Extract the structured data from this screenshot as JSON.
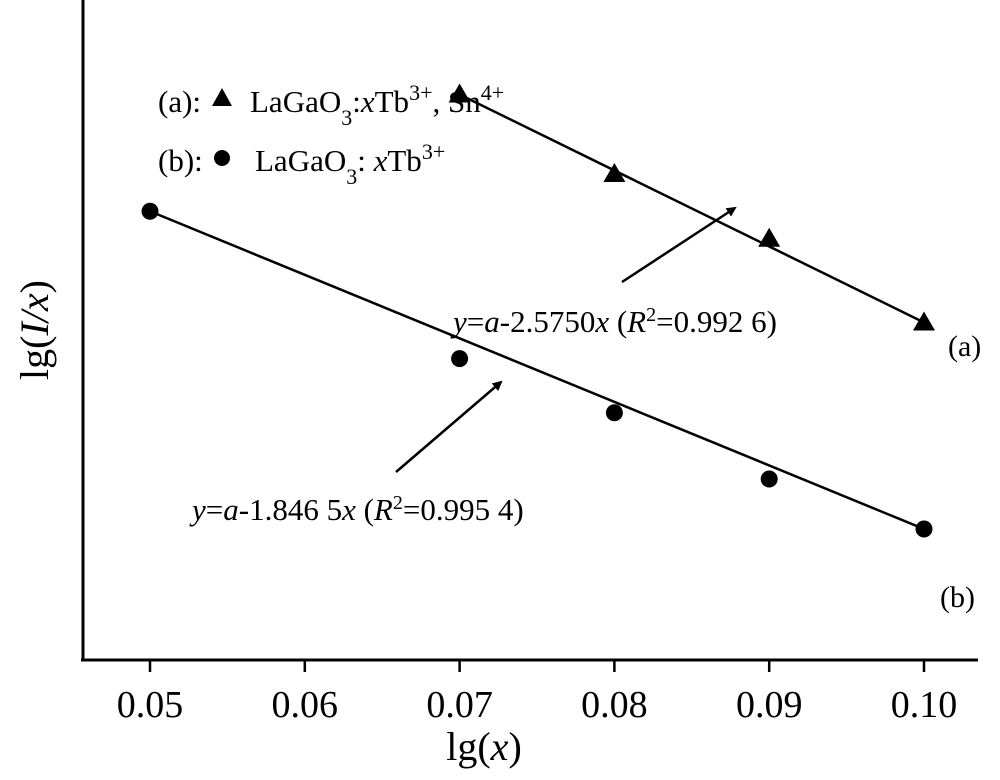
{
  "chart_data": {
    "type": "scatter",
    "xlabel_prefix": "lg(",
    "xlabel_var": "x",
    "xlabel_suffix": ")",
    "ylabel_prefix": "lg(",
    "ylabel_var": "I/x",
    "ylabel_suffix": ")",
    "x_ticks": [
      "0.05",
      "0.06",
      "0.07",
      "0.08",
      "0.09",
      "0.10"
    ],
    "xlim": [
      0.0455,
      0.1035
    ],
    "ylim": [
      0.0,
      1.0
    ],
    "y_ticks_shown": false,
    "grid": false,
    "legend_position": "top-left",
    "series": [
      {
        "name_prefix": "(a):",
        "legend_text_html": "LaGaO<tspan baseline-shift=\"sub\" font-size=\"22\">3</tspan>:<tspan font-style=\"italic\">x</tspan>Tb<tspan baseline-shift=\"super\" font-size=\"22\">3+</tspan>, Sn<tspan baseline-shift=\"super\" font-size=\"22\">4+</tspan>",
        "marker": "triangle",
        "end_label": "(a)",
        "x": [
          0.07,
          0.08,
          0.09,
          0.1
        ],
        "y": [
          0.952,
          0.796,
          0.669,
          0.505
        ],
        "fit": {
          "x0": 0.07,
          "y0": 0.952,
          "x1": 0.1,
          "y1": 0.505
        },
        "equation_html": "<tspan font-style=\"italic\">y</tspan>=<tspan font-style=\"italic\">a</tspan>-2.5750<tspan font-style=\"italic\">x</tspan> (<tspan font-style=\"italic\">R</tspan><tspan baseline-shift=\"super\" font-size=\"20\">2</tspan>=0.992 6)"
      },
      {
        "name_prefix": "(b):",
        "legend_text_html": "LaGaO<tspan baseline-shift=\"sub\" font-size=\"22\">3</tspan>: <tspan font-style=\"italic\">x</tspan>Tb<tspan baseline-shift=\"super\" font-size=\"22\">3+</tspan>",
        "marker": "circle",
        "end_label": "(b)",
        "x": [
          0.05,
          0.07,
          0.08,
          0.09,
          0.1
        ],
        "y": [
          0.723,
          0.434,
          0.328,
          0.198,
          0.1
        ],
        "fit": {
          "x0": 0.05,
          "y0": 0.723,
          "x1": 0.1,
          "y1": 0.1
        },
        "equation_html": "<tspan font-style=\"italic\">y</tspan>=<tspan font-style=\"italic\">a</tspan>-1.846 5<tspan font-style=\"italic\">x</tspan> (<tspan font-style=\"italic\">R</tspan><tspan baseline-shift=\"super\" font-size=\"20\">2</tspan>=0.995 4)"
      }
    ]
  }
}
